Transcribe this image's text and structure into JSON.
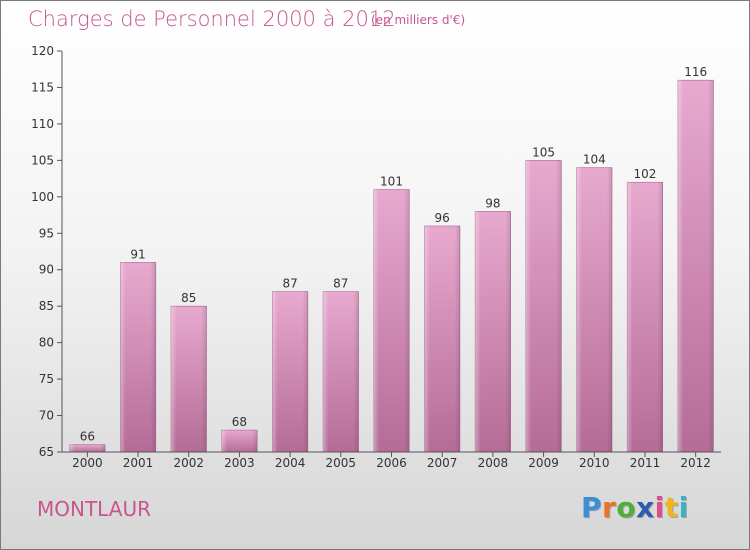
{
  "header": {
    "title": "Charges de Personnel 2000 à 2012",
    "subtitle": "(en milliers d'€)"
  },
  "footer": {
    "commune": "MONTLAUR",
    "logo_text": "Proxiti"
  },
  "colors": {
    "bar_light": "#e6a6cc",
    "bar_dark": "#b8729a",
    "title": "#c8558f",
    "axis": "#333333"
  },
  "chart_data": {
    "type": "bar",
    "title": "Charges de Personnel 2000 à 2012",
    "subtitle": "(en milliers d'€)",
    "categories": [
      "2000",
      "2001",
      "2002",
      "2003",
      "2004",
      "2005",
      "2006",
      "2007",
      "2008",
      "2009",
      "2010",
      "2011",
      "2012"
    ],
    "values": [
      66,
      91,
      85,
      68,
      87,
      87,
      101,
      96,
      98,
      105,
      104,
      102,
      116
    ],
    "ylim": [
      65,
      120
    ],
    "yticks": [
      65,
      70,
      75,
      80,
      85,
      90,
      95,
      100,
      105,
      110,
      115,
      120
    ],
    "grid": false,
    "legend": "none"
  }
}
